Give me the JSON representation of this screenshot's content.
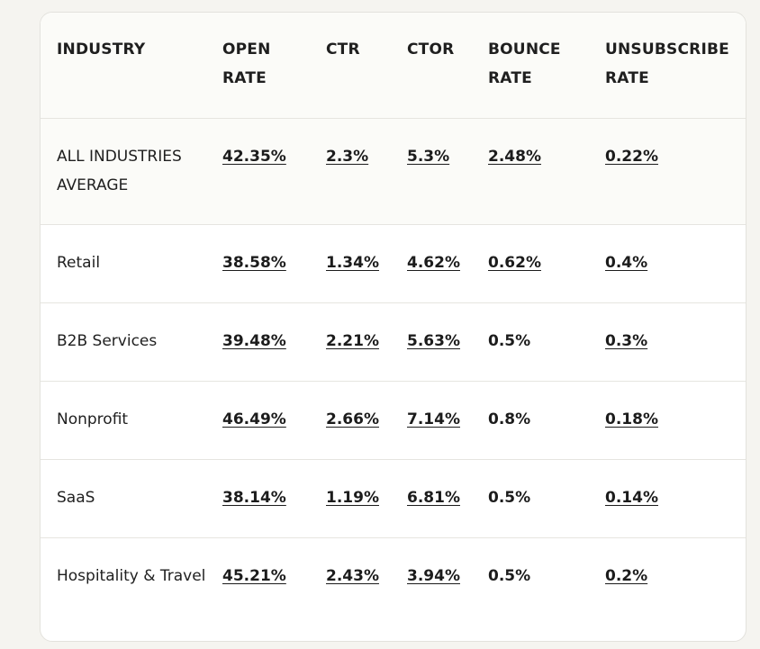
{
  "table": {
    "headers": [
      "INDUSTRY",
      "OPEN RATE",
      "CTR",
      "CTOR",
      "BOUNCE RATE",
      "UNSUBSCRIBE RATE"
    ],
    "rows": [
      {
        "industry": "ALL INDUSTRIES AVERAGE",
        "open_rate": "42.35%",
        "ctr": "2.3%",
        "ctor": "5.3%",
        "bounce_rate": "2.48%",
        "unsubscribe_rate": "0.22%"
      },
      {
        "industry": "Retail",
        "open_rate": "38.58%",
        "ctr": "1.34%",
        "ctor": "4.62%",
        "bounce_rate": "0.62%",
        "unsubscribe_rate": "0.4%"
      },
      {
        "industry": "B2B Services",
        "open_rate": "39.48%",
        "ctr": "2.21%",
        "ctor": "5.63%",
        "bounce_rate": "0.5%",
        "unsubscribe_rate": "0.3%"
      },
      {
        "industry": "Nonprofit",
        "open_rate": "46.49%",
        "ctr": "2.66%",
        "ctor": "7.14%",
        "bounce_rate": "0.8%",
        "unsubscribe_rate": "0.18%"
      },
      {
        "industry": "SaaS",
        "open_rate": "38.14%",
        "ctr": "1.19%",
        "ctor": "6.81%",
        "bounce_rate": "0.5%",
        "unsubscribe_rate": "0.14%"
      },
      {
        "industry": "Hospitality & Travel",
        "open_rate": "45.21%",
        "ctr": "2.43%",
        "ctor": "3.94%",
        "bounce_rate": "0.5%",
        "unsubscribe_rate": "0.2%"
      }
    ]
  }
}
